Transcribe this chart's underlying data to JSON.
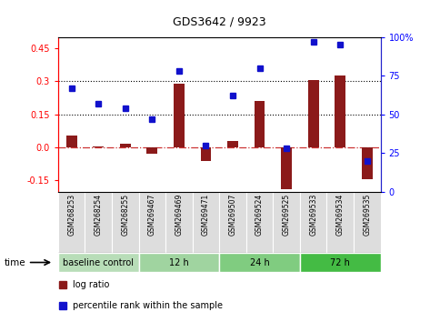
{
  "title": "GDS3642 / 9923",
  "samples": [
    "GSM268253",
    "GSM268254",
    "GSM268255",
    "GSM269467",
    "GSM269469",
    "GSM269471",
    "GSM269507",
    "GSM269524",
    "GSM269525",
    "GSM269533",
    "GSM269534",
    "GSM269535"
  ],
  "log_ratio": [
    0.055,
    0.005,
    0.015,
    -0.03,
    0.29,
    -0.06,
    0.03,
    0.21,
    -0.19,
    0.305,
    0.325,
    -0.145
  ],
  "percentile_rank": [
    67,
    57,
    54,
    47,
    78,
    30,
    62,
    80,
    28,
    97,
    95,
    20
  ],
  "bar_color": "#8B1A1A",
  "dot_color": "#1111CC",
  "ylim_left": [
    -0.2,
    0.5
  ],
  "ylim_right": [
    0,
    100
  ],
  "yticks_left": [
    -0.15,
    0.0,
    0.15,
    0.3,
    0.45
  ],
  "yticks_right": [
    0,
    25,
    50,
    75,
    100
  ],
  "hlines": [
    0.15,
    0.3
  ],
  "groups": [
    {
      "label": "baseline control",
      "start": 0,
      "end": 3,
      "color": "#b8ddb8"
    },
    {
      "label": "12 h",
      "start": 3,
      "end": 6,
      "color": "#a0d4a0"
    },
    {
      "label": "24 h",
      "start": 6,
      "end": 9,
      "color": "#80cc80"
    },
    {
      "label": "72 h",
      "start": 9,
      "end": 12,
      "color": "#44bb44"
    }
  ],
  "legend_log_label": "log ratio",
  "legend_pct_label": "percentile rank within the sample",
  "bar_width": 0.4
}
